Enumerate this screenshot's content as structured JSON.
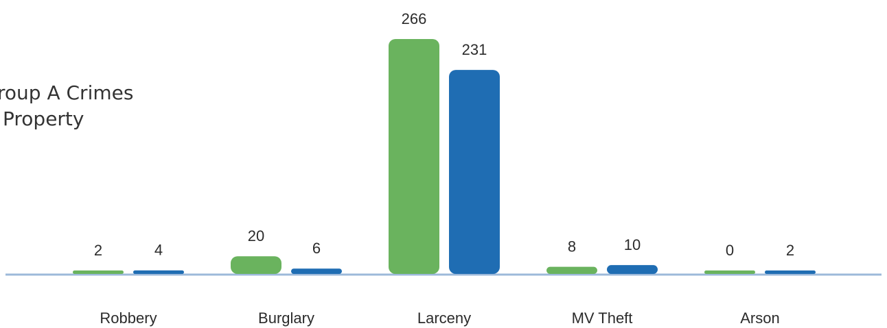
{
  "chart_data": {
    "type": "bar",
    "title": [
      "roup A Crimes",
      "Property"
    ],
    "categories": [
      "Robbery",
      "Burglary",
      "Larceny",
      "MV Theft",
      "Arson"
    ],
    "series": [
      {
        "color": "#6ab35e",
        "values": [
          2,
          20,
          266,
          8,
          0
        ]
      },
      {
        "color": "#1f6db3",
        "values": [
          4,
          6,
          231,
          10,
          2
        ]
      }
    ]
  }
}
